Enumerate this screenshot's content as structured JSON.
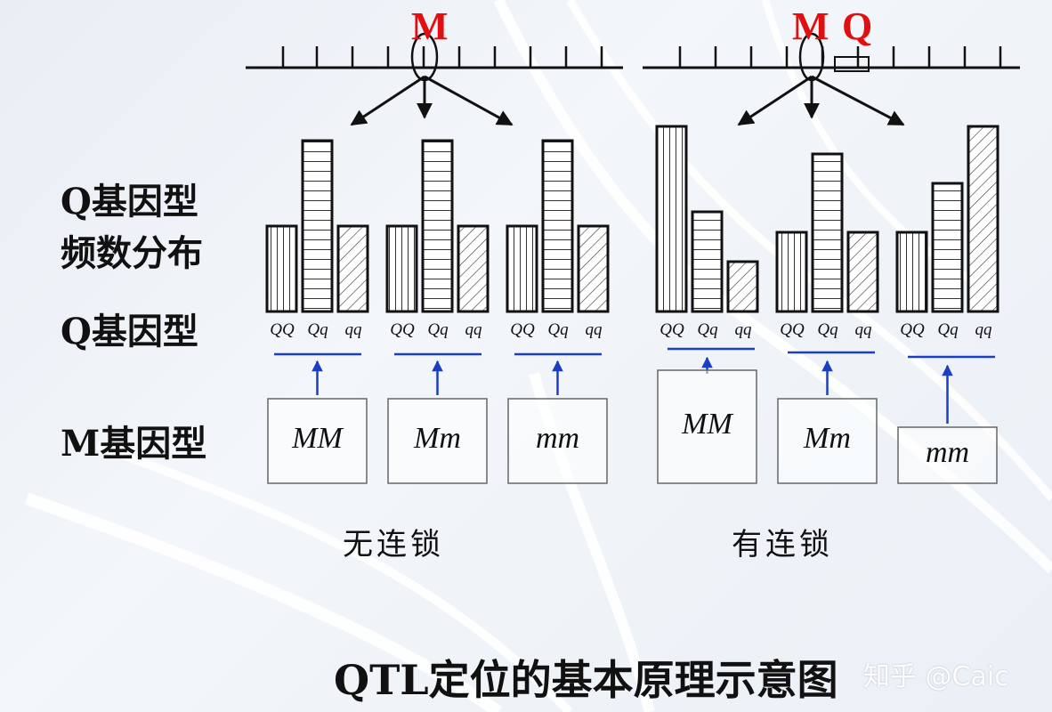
{
  "labels": {
    "freq_line1": "Q基因型",
    "freq_line2": "频数分布",
    "q_genotype": "Q基因型",
    "m_genotype": "M基因型"
  },
  "panels": [
    {
      "id": "no-linkage",
      "markers": [
        "M"
      ],
      "caption": "无连锁",
      "groups": [
        {
          "m_genotype": "MM",
          "q_genotypes": [
            "QQ",
            "Qq",
            "qq"
          ],
          "bar_levels": [
            0.5,
            1.0,
            0.5
          ]
        },
        {
          "m_genotype": "Mm",
          "q_genotypes": [
            "QQ",
            "Qq",
            "qq"
          ],
          "bar_levels": [
            0.5,
            1.0,
            0.5
          ]
        },
        {
          "m_genotype": "mm",
          "q_genotypes": [
            "QQ",
            "Qq",
            "qq"
          ],
          "bar_levels": [
            0.5,
            1.0,
            0.5
          ]
        }
      ]
    },
    {
      "id": "linkage",
      "markers": [
        "M",
        "Q"
      ],
      "caption": "有连锁",
      "groups": [
        {
          "m_genotype": "MM",
          "q_genotypes": [
            "QQ",
            "Qq",
            "qq"
          ],
          "bar_levels": [
            1.0,
            0.54,
            0.27
          ]
        },
        {
          "m_genotype": "Mm",
          "q_genotypes": [
            "QQ",
            "Qq",
            "qq"
          ],
          "bar_levels": [
            0.43,
            0.85,
            0.43
          ]
        },
        {
          "m_genotype": "mm",
          "q_genotypes": [
            "QQ",
            "Qq",
            "qq"
          ],
          "bar_levels": [
            0.43,
            0.69,
            1.0
          ]
        }
      ]
    }
  ],
  "title": "QTL定位的基本原理示意图",
  "watermark": "知乎 @Caic",
  "colors": {
    "marker": "#e01010",
    "connector": "#1a3fc0",
    "ink": "#111111"
  }
}
